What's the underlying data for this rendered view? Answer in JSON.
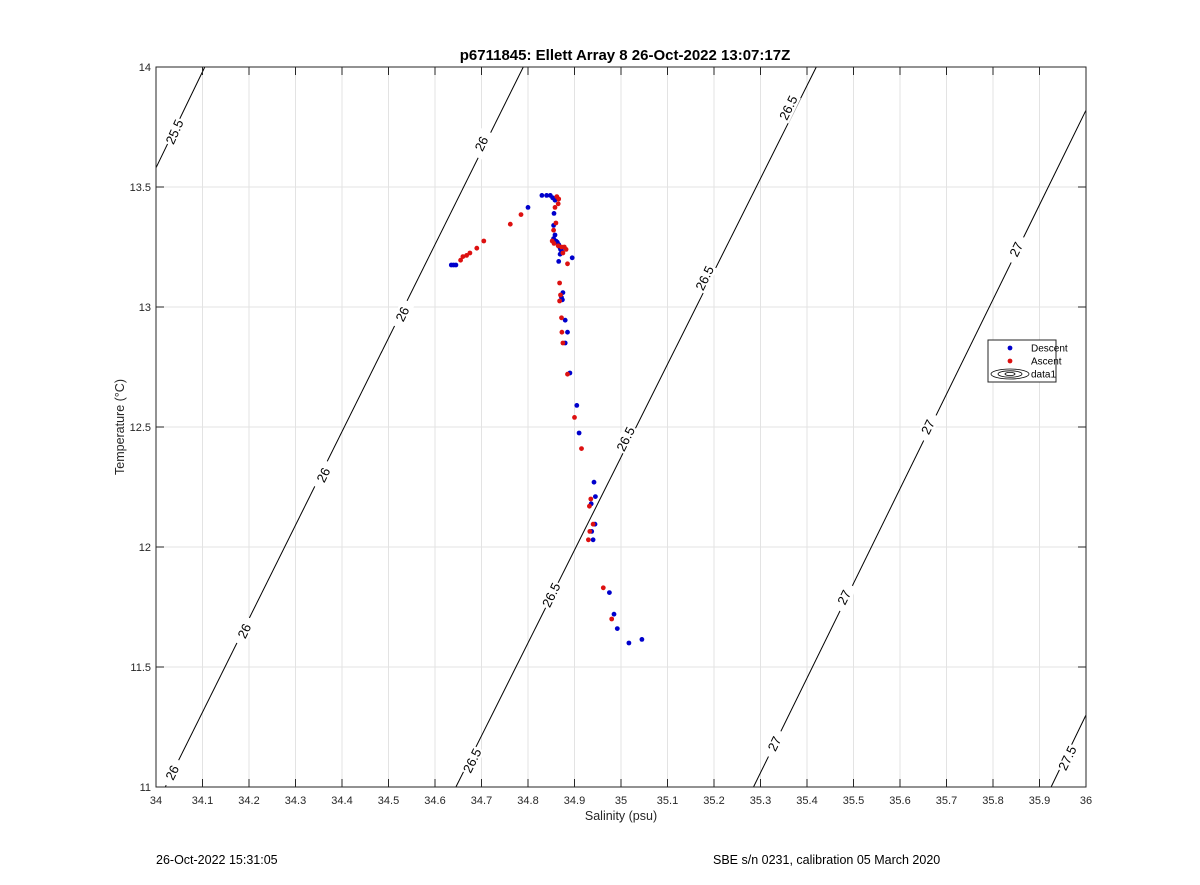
{
  "chart_data": {
    "type": "scatter",
    "title": "p6711845: Ellett Array 8 26-Oct-2022 13:07:17Z",
    "xlabel": "Salinity (psu)",
    "ylabel": "Temperature (°C)",
    "xlim": [
      34,
      36
    ],
    "ylim": [
      11,
      14
    ],
    "xticks": [
      "34",
      "34.1",
      "34.2",
      "34.3",
      "34.4",
      "34.5",
      "34.6",
      "34.7",
      "34.8",
      "34.9",
      "35",
      "35.1",
      "35.2",
      "35.3",
      "35.4",
      "35.5",
      "35.6",
      "35.7",
      "35.8",
      "35.9",
      "36"
    ],
    "yticks": [
      "11",
      "11.5",
      "12",
      "12.5",
      "13",
      "13.5",
      "14"
    ],
    "grid": true,
    "legend_position": "right",
    "series": [
      {
        "name": "Descent",
        "color": "#0000cc",
        "points": [
          [
            34.635,
            13.175
          ],
          [
            34.64,
            13.175
          ],
          [
            34.645,
            13.175
          ],
          [
            34.8,
            13.415
          ],
          [
            34.83,
            13.465
          ],
          [
            34.84,
            13.465
          ],
          [
            34.848,
            13.465
          ],
          [
            34.853,
            13.455
          ],
          [
            34.858,
            13.445
          ],
          [
            34.856,
            13.39
          ],
          [
            34.855,
            13.34
          ],
          [
            34.858,
            13.3
          ],
          [
            34.855,
            13.285
          ],
          [
            34.86,
            13.275
          ],
          [
            34.863,
            13.27
          ],
          [
            34.866,
            13.26
          ],
          [
            34.868,
            13.25
          ],
          [
            34.87,
            13.24
          ],
          [
            34.872,
            13.235
          ],
          [
            34.869,
            13.22
          ],
          [
            34.866,
            13.19
          ],
          [
            34.895,
            13.205
          ],
          [
            34.875,
            13.06
          ],
          [
            34.872,
            13.04
          ],
          [
            34.874,
            13.03
          ],
          [
            34.88,
            12.945
          ],
          [
            34.885,
            12.895
          ],
          [
            34.88,
            12.85
          ],
          [
            34.89,
            12.725
          ],
          [
            34.905,
            12.59
          ],
          [
            34.91,
            12.475
          ],
          [
            34.942,
            12.27
          ],
          [
            34.945,
            12.21
          ],
          [
            34.936,
            12.18
          ],
          [
            34.944,
            12.095
          ],
          [
            34.937,
            12.065
          ],
          [
            34.94,
            12.03
          ],
          [
            34.975,
            11.81
          ],
          [
            34.985,
            11.72
          ],
          [
            34.992,
            11.66
          ],
          [
            35.017,
            11.6
          ],
          [
            35.045,
            11.615
          ]
        ]
      },
      {
        "name": "Ascent",
        "color": "#dd1111",
        "points": [
          [
            34.655,
            13.195
          ],
          [
            34.66,
            13.21
          ],
          [
            34.668,
            13.215
          ],
          [
            34.675,
            13.225
          ],
          [
            34.69,
            13.245
          ],
          [
            34.705,
            13.275
          ],
          [
            34.762,
            13.345
          ],
          [
            34.785,
            13.385
          ],
          [
            34.862,
            13.46
          ],
          [
            34.866,
            13.45
          ],
          [
            34.865,
            13.43
          ],
          [
            34.858,
            13.415
          ],
          [
            34.86,
            13.35
          ],
          [
            34.855,
            13.32
          ],
          [
            34.852,
            13.275
          ],
          [
            34.856,
            13.265
          ],
          [
            34.865,
            13.255
          ],
          [
            34.872,
            13.25
          ],
          [
            34.878,
            13.25
          ],
          [
            34.882,
            13.24
          ],
          [
            34.875,
            13.225
          ],
          [
            34.885,
            13.18
          ],
          [
            34.868,
            13.1
          ],
          [
            34.87,
            13.05
          ],
          [
            34.868,
            13.025
          ],
          [
            34.872,
            12.955
          ],
          [
            34.873,
            12.895
          ],
          [
            34.875,
            12.85
          ],
          [
            34.885,
            12.72
          ],
          [
            34.9,
            12.54
          ],
          [
            34.915,
            12.41
          ],
          [
            34.935,
            12.2
          ],
          [
            34.932,
            12.17
          ],
          [
            34.94,
            12.095
          ],
          [
            34.933,
            12.065
          ],
          [
            34.93,
            12.03
          ],
          [
            34.962,
            11.83
          ],
          [
            34.98,
            11.7
          ]
        ]
      }
    ],
    "contours": [
      {
        "level": "25.5",
        "path": [
          [
            34.0,
            13.58
          ],
          [
            34.105,
            14.0
          ]
        ],
        "labels": [
          [
            34.04,
            13.73,
            66
          ]
        ]
      },
      {
        "level": "26",
        "path": [
          [
            34.02,
            11.0
          ],
          [
            34.79,
            14.0
          ]
        ],
        "labels": [
          [
            34.035,
            11.06,
            64
          ],
          [
            34.19,
            11.65,
            64
          ],
          [
            34.36,
            12.3,
            64
          ],
          [
            34.53,
            12.97,
            64
          ],
          [
            34.7,
            13.68,
            64
          ]
        ]
      },
      {
        "level": "26.5",
        "path": [
          [
            34.645,
            11.0
          ],
          [
            35.42,
            14.0
          ]
        ],
        "labels": [
          [
            34.68,
            11.11,
            64
          ],
          [
            34.85,
            11.8,
            64
          ],
          [
            35.01,
            12.45,
            64
          ],
          [
            35.18,
            13.12,
            64
          ],
          [
            35.36,
            13.83,
            64
          ]
        ]
      },
      {
        "level": "27",
        "path": [
          [
            35.285,
            11.0
          ],
          [
            36.0,
            13.82
          ]
        ],
        "labels": [
          [
            35.33,
            11.18,
            64
          ],
          [
            35.48,
            11.79,
            64
          ],
          [
            35.66,
            12.5,
            64
          ],
          [
            35.85,
            13.24,
            64
          ]
        ]
      },
      {
        "level": "27.5",
        "path": [
          [
            35.925,
            11.0
          ],
          [
            36.0,
            11.3
          ]
        ],
        "labels": [
          [
            35.96,
            11.12,
            64
          ]
        ]
      }
    ],
    "legend": [
      {
        "name": "Descent",
        "marker": "dot",
        "color": "#0000cc"
      },
      {
        "name": "Ascent",
        "marker": "dot",
        "color": "#dd1111"
      },
      {
        "name": "data1",
        "marker": "contour",
        "color": "#000000"
      }
    ]
  },
  "footer": {
    "left": "26-Oct-2022 15:31:05",
    "right": "SBE s/n 0231, calibration 05 March 2020"
  }
}
